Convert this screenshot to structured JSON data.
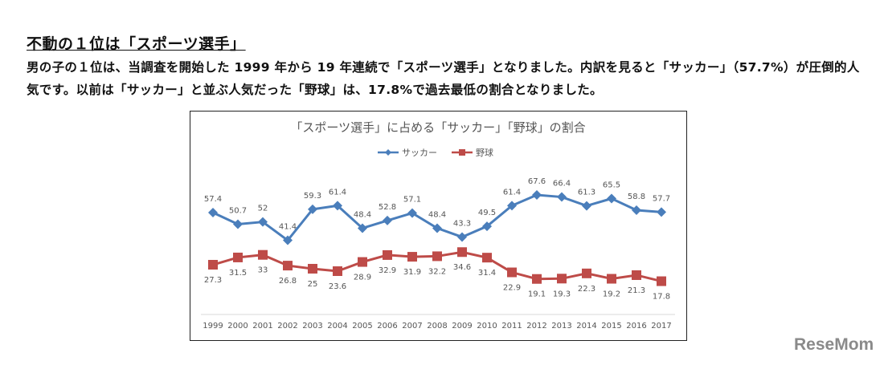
{
  "article": {
    "heading": "不動の１位は「スポーツ選手」",
    "body": "男の子の１位は、当調査を開始した 1999 年から 19 年連続で「スポーツ選手」となりました。内訳を見ると「サッカー」（57.7%）が圧倒的人気です。以前は「サッカー」と並ぶ人気だった「野球」は、17.8%で過去最低の割合となりました。"
  },
  "watermark": "ReseMom",
  "chart_data": {
    "type": "line",
    "title": "「スポーツ選手」に占める「サッカー」「野球」の割合",
    "legend_position": "top",
    "grid": false,
    "x": [
      "1999",
      "2000",
      "2001",
      "2002",
      "2003",
      "2004",
      "2005",
      "2006",
      "2007",
      "2008",
      "2009",
      "2010",
      "2011",
      "2012",
      "2013",
      "2014",
      "2015",
      "2016",
      "2017"
    ],
    "series": [
      {
        "name": "サッカー",
        "color": "#4a7ebb",
        "marker": "diamond",
        "values": [
          57.4,
          50.7,
          52,
          41.4,
          59.3,
          61.4,
          48.4,
          52.8,
          57.1,
          48.4,
          43.3,
          49.5,
          61.4,
          67.6,
          66.4,
          61.3,
          65.5,
          58.8,
          57.7
        ]
      },
      {
        "name": "野球",
        "color": "#be4b48",
        "marker": "square",
        "values": [
          27.3,
          31.5,
          33,
          26.8,
          25,
          23.6,
          28.9,
          32.9,
          31.9,
          32.2,
          34.6,
          31.4,
          22.9,
          19.1,
          19.3,
          22.3,
          19.2,
          21.3,
          17.8
        ]
      }
    ]
  }
}
